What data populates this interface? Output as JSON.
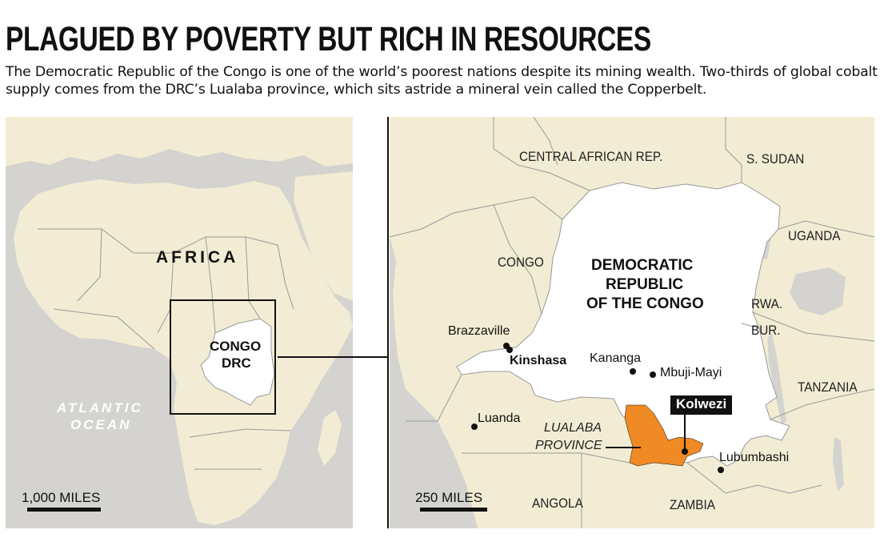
{
  "header": {
    "title": "PLAGUED BY POVERTY BUT RICH IN RESOURCES",
    "subtitle": "The Democratic Republic of the Congo is one of the world’s poorest nations despite its mining wealth. Two-thirds of global cobalt supply comes from the DRC’s Lualaba province, which sits astride a mineral vein called the Copperbelt."
  },
  "colors": {
    "land": "#f1ecd3",
    "water": "#d4d3cf",
    "drc": "#ffffff",
    "lualaba": "#f08a24",
    "border": "#999999",
    "ink": "#111111"
  },
  "left_map": {
    "continent_label": "AFRICA",
    "ocean_label_line1": "ATLANTIC",
    "ocean_label_line2": "OCEAN",
    "inset_label_line1": "CONGO",
    "inset_label_line2": "DRC",
    "scale_label": "1,000 MILES"
  },
  "right_map": {
    "countries": {
      "car": "CENTRAL AFRICAN REP.",
      "s_sudan": "S. SUDAN",
      "uganda": "UGANDA",
      "congo": "CONGO",
      "rwanda": "RWA.",
      "burundi": "BUR.",
      "tanzania": "TANZANIA",
      "angola": "ANGOLA",
      "zambia": "ZAMBIA"
    },
    "drc_label_line1": "DEMOCRATIC",
    "drc_label_line2": "REPUBLIC",
    "drc_label_line3": "OF THE CONGO",
    "cities": {
      "brazzaville": "Brazzaville",
      "kinshasa": "Kinshasa",
      "kananga": "Kananga",
      "mbuji_mayi": "Mbuji-Mayi",
      "luanda": "Luanda",
      "kolwezi": "Kolwezi",
      "lubumbashi": "Lubumbashi"
    },
    "province_label_line1": "LUALABA",
    "province_label_line2": "PROVINCE",
    "scale_label": "250 MILES"
  }
}
